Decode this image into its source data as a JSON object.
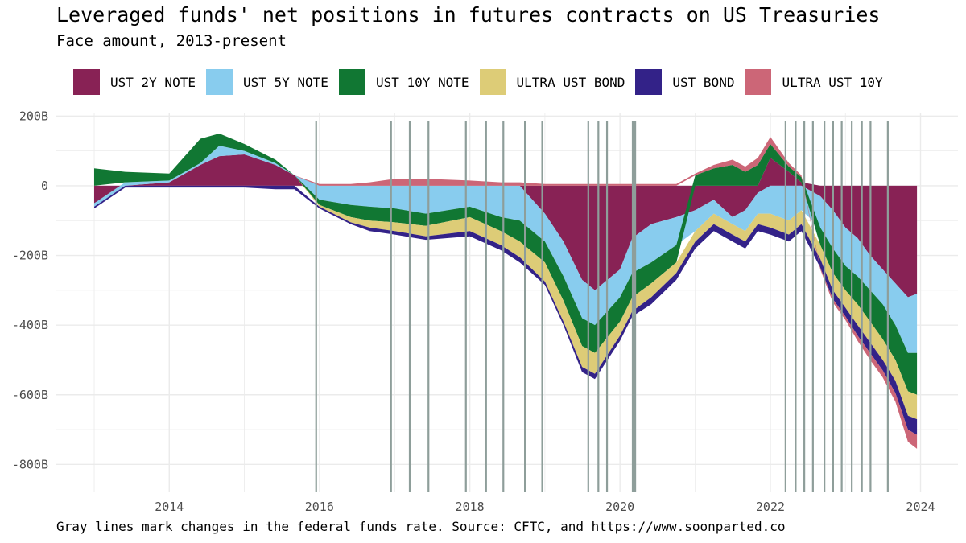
{
  "title": "Leveraged funds' net positions in futures contracts on US Treasuries",
  "subtitle": "Face amount, 2013-present",
  "caption": "Gray lines mark changes in the federal funds rate. Source: CFTC, and https://www.soonparted.co",
  "colors": {
    "ust_2y_note": "#882255",
    "ust_5y_note": "#88ccee",
    "ust_10y_note": "#117733",
    "ultra_ust_bond": "#ddcc77",
    "ust_bond": "#332288",
    "ultra_ust_10y": "#cc6677",
    "rate_change_line": "#8e9e9a",
    "grid": "#ebebeb"
  },
  "chart_data": {
    "type": "area",
    "stacking": "diverging",
    "y_unit": "B",
    "ylim": [
      -880,
      210
    ],
    "xlim": [
      "2012-07-01",
      "2024-07-01"
    ],
    "x_ticks": [
      "2014",
      "2016",
      "2018",
      "2020",
      "2022",
      "2024"
    ],
    "y_ticks": [
      "200B",
      "0",
      "-200B",
      "-400B",
      "-600B",
      "-800B"
    ],
    "grid": true,
    "legend_position": "top",
    "x": [
      "2013-01-01",
      "2013-06-01",
      "2014-01-01",
      "2014-06-01",
      "2014-09-01",
      "2015-01-01",
      "2015-06-01",
      "2015-09-01",
      "2016-01-01",
      "2016-06-01",
      "2016-09-01",
      "2017-01-01",
      "2017-06-01",
      "2018-01-01",
      "2018-06-01",
      "2018-09-01",
      "2019-01-01",
      "2019-04-01",
      "2019-07-01",
      "2019-09-01",
      "2020-01-01",
      "2020-03-01",
      "2020-06-01",
      "2020-10-01",
      "2021-01-01",
      "2021-04-01",
      "2021-07-01",
      "2021-09-01",
      "2021-11-01",
      "2022-01-01",
      "2022-04-01",
      "2022-06-01",
      "2022-09-01",
      "2022-11-01",
      "2023-01-01",
      "2023-03-01",
      "2023-05-01",
      "2023-07-01",
      "2023-09-01",
      "2023-11-01",
      "2023-12-15"
    ],
    "series": [
      {
        "name": "UST 2Y NOTE",
        "key": "ust_2y_note",
        "values": [
          -50,
          0,
          10,
          60,
          85,
          90,
          60,
          30,
          0,
          0,
          0,
          0,
          0,
          0,
          0,
          0,
          -80,
          -160,
          -270,
          -300,
          -240,
          -150,
          -110,
          -90,
          -70,
          -40,
          -90,
          -70,
          -20,
          80,
          40,
          10,
          -30,
          -70,
          -120,
          -150,
          -200,
          -240,
          -280,
          -320,
          -310
        ]
      },
      {
        "name": "UST 5Y NOTE",
        "key": "ust_5y_note",
        "values": [
          -10,
          10,
          5,
          5,
          30,
          10,
          5,
          0,
          -40,
          -55,
          -60,
          -65,
          -80,
          -60,
          -90,
          -100,
          -80,
          -100,
          -110,
          -100,
          -80,
          -100,
          -110,
          -80,
          -60,
          -40,
          -20,
          -60,
          -60,
          -80,
          -100,
          -70,
          -90,
          -110,
          -110,
          -110,
          -100,
          -100,
          -120,
          -160,
          -170
        ]
      },
      {
        "name": "UST 10Y NOTE",
        "key": "ust_10y_note",
        "values": [
          50,
          30,
          20,
          70,
          35,
          20,
          10,
          0,
          -15,
          -35,
          -40,
          -40,
          -35,
          -30,
          -40,
          -60,
          -60,
          -70,
          -80,
          -80,
          -70,
          -70,
          -60,
          -50,
          30,
          50,
          60,
          40,
          60,
          40,
          15,
          15,
          -50,
          -70,
          -70,
          -80,
          -90,
          -100,
          -100,
          -110,
          -120
        ]
      },
      {
        "name": "ULTRA UST BOND",
        "key": "ultra_ust_bond",
        "values": [
          0,
          0,
          0,
          0,
          0,
          0,
          0,
          0,
          -5,
          -15,
          -20,
          -25,
          -30,
          -40,
          -40,
          -45,
          -55,
          -60,
          -60,
          -60,
          -40,
          -40,
          -40,
          -30,
          -30,
          -30,
          -30,
          -30,
          -30,
          -40,
          -40,
          -40,
          -40,
          -50,
          -50,
          -60,
          -60,
          -60,
          -60,
          -70,
          -70
        ]
      },
      {
        "name": "UST BOND",
        "key": "ust_bond",
        "values": [
          -5,
          -5,
          -5,
          -5,
          -5,
          -5,
          -10,
          -10,
          -5,
          -5,
          -10,
          -10,
          -10,
          -15,
          -15,
          -15,
          -10,
          -10,
          -15,
          -15,
          -15,
          -15,
          -20,
          -20,
          -20,
          -20,
          -20,
          -20,
          -20,
          -20,
          -20,
          -20,
          -25,
          -25,
          -25,
          -30,
          -30,
          -30,
          -35,
          -40,
          -45
        ]
      },
      {
        "name": "ULTRA UST 10Y",
        "key": "ultra_ust_10y",
        "values": [
          0,
          0,
          0,
          0,
          0,
          0,
          0,
          0,
          5,
          5,
          10,
          20,
          20,
          15,
          10,
          10,
          5,
          5,
          5,
          5,
          5,
          5,
          5,
          5,
          5,
          10,
          15,
          15,
          20,
          20,
          10,
          5,
          -5,
          -10,
          -10,
          -15,
          -20,
          -20,
          -25,
          -35,
          -40
        ]
      }
    ],
    "rate_changes": [
      "2015-12-16",
      "2016-12-14",
      "2017-03-15",
      "2017-06-14",
      "2017-12-13",
      "2018-03-21",
      "2018-06-13",
      "2018-09-26",
      "2018-12-19",
      "2019-07-31",
      "2019-09-18",
      "2019-10-30",
      "2020-03-03",
      "2020-03-15",
      "2022-03-16",
      "2022-05-04",
      "2022-06-15",
      "2022-07-27",
      "2022-09-21",
      "2022-11-02",
      "2022-12-14",
      "2023-02-01",
      "2023-03-22",
      "2023-05-03",
      "2023-07-26"
    ]
  }
}
